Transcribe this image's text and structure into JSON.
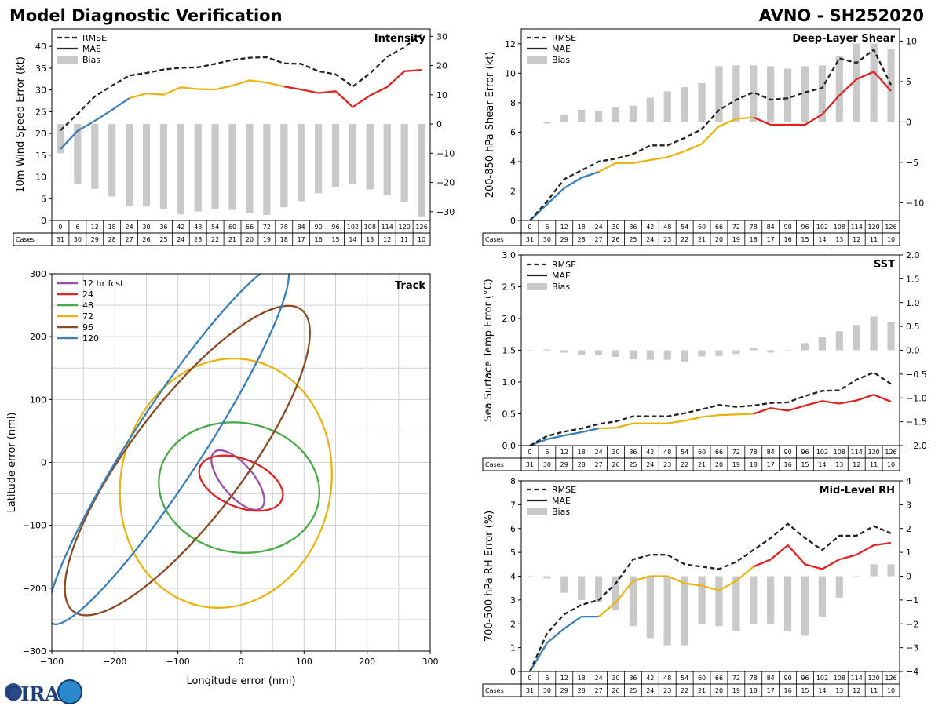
{
  "header": {
    "left_title": "Model Diagnostic Verification",
    "right_title": "AVNO - SH252020"
  },
  "logo": {
    "text": "CIRA"
  },
  "legend_labels": {
    "rmse": "RMSE",
    "mae": "MAE",
    "bias": "Bias"
  },
  "cases_label": "Cases",
  "colors": {
    "early": "#3a7fb8",
    "mid": "#e8b415",
    "late": "#de2423",
    "rmse": "#222222",
    "bias": "#c9c9c9"
  },
  "hours": [
    0,
    6,
    12,
    18,
    24,
    30,
    36,
    42,
    48,
    54,
    60,
    66,
    72,
    78,
    84,
    90,
    96,
    102,
    108,
    114,
    120,
    126
  ],
  "cases": [
    31,
    30,
    29,
    28,
    27,
    26,
    25,
    24,
    23,
    22,
    21,
    20,
    19,
    18,
    17,
    16,
    15,
    14,
    13,
    12,
    11,
    10
  ],
  "chart_data": [
    {
      "id": "intensity",
      "type": "line",
      "title": "Intensity",
      "ylabel": "10m Wind Speed Error (kt)",
      "ylim": [
        0,
        44
      ],
      "yticks": [
        0,
        5,
        10,
        15,
        20,
        25,
        30,
        35,
        40
      ],
      "y2lim": [
        -33,
        32.5
      ],
      "y2ticks": [
        -30,
        -20,
        -10,
        0,
        10,
        20,
        30
      ],
      "rmse": [
        20.7,
        24.5,
        28.5,
        31,
        33.3,
        33.9,
        34.7,
        35.1,
        35.2,
        36,
        36.9,
        37.4,
        37.5,
        36.1,
        36,
        34.3,
        33.6,
        30.8,
        33.8,
        37.6,
        39.8,
        42.8
      ],
      "mae": [
        16.4,
        20.6,
        22.9,
        25.4,
        28.1,
        29.2,
        28.9,
        30.6,
        30.2,
        30.1,
        31,
        32.2,
        31.7,
        30.8,
        30.1,
        29.3,
        29.7,
        26.1,
        28.7,
        30.7,
        34.3,
        34.6
      ],
      "bias": [
        -10,
        -20.5,
        -22.2,
        -24.8,
        -28.1,
        -28.2,
        -29.1,
        -30.9,
        -29.9,
        -29.2,
        -29.4,
        -30.5,
        -31.1,
        -28.5,
        -26.4,
        -23.7,
        -21.6,
        -20.5,
        -22.4,
        -24.4,
        -26.7,
        -31.6
      ]
    },
    {
      "id": "shear",
      "type": "line",
      "title": "Deep-Layer Shear",
      "ylabel": "200-850 hPa Shear Error (kt)",
      "ylim": [
        0,
        13
      ],
      "yticks": [
        0,
        2,
        4,
        6,
        8,
        10,
        12
      ],
      "y2lim": [
        -12.2,
        11.5
      ],
      "y2ticks": [
        -10,
        -5,
        0,
        5,
        10
      ],
      "rmse": [
        0,
        1.3,
        2.8,
        3.4,
        4,
        4.2,
        4.5,
        5.1,
        5.1,
        5.6,
        6.2,
        7.5,
        8.2,
        8.7,
        8.2,
        8.3,
        8.7,
        9,
        11,
        10.7,
        11.6,
        9.2
      ],
      "mae": [
        0,
        1.1,
        2.2,
        2.9,
        3.3,
        3.9,
        3.9,
        4.1,
        4.3,
        4.7,
        5.2,
        6.4,
        6.9,
        7.0,
        6.5,
        6.5,
        6.5,
        7.2,
        8.5,
        9.6,
        10.1,
        8.8
      ],
      "bias": [
        0,
        -0.2,
        0.9,
        1.5,
        1.4,
        1.8,
        2.0,
        3.0,
        3.8,
        4.3,
        4.8,
        6.9,
        7.0,
        7.0,
        6.9,
        6.6,
        6.9,
        7.0,
        8.1,
        9.7,
        9.7,
        9.0
      ]
    },
    {
      "id": "sst",
      "type": "line",
      "title": "SST",
      "ylabel": "Sea Surface Temp Error (°C)",
      "ylim": [
        0,
        3
      ],
      "yticks": [
        0.0,
        0.5,
        1.0,
        1.5,
        2.0,
        2.5,
        3.0
      ],
      "y2lim": [
        -2,
        2
      ],
      "y2ticks": [
        -2.0,
        -1.5,
        -1.0,
        -0.5,
        0.0,
        0.5,
        1.0,
        1.5,
        2.0
      ],
      "rmse": [
        0,
        0.15,
        0.22,
        0.27,
        0.34,
        0.38,
        0.46,
        0.46,
        0.46,
        0.51,
        0.57,
        0.64,
        0.61,
        0.63,
        0.67,
        0.68,
        0.78,
        0.86,
        0.87,
        1.04,
        1.15,
        0.97
      ],
      "mae": [
        0,
        0.1,
        0.16,
        0.21,
        0.27,
        0.28,
        0.35,
        0.35,
        0.35,
        0.39,
        0.45,
        0.48,
        0.49,
        0.5,
        0.59,
        0.55,
        0.63,
        0.7,
        0.66,
        0.71,
        0.8,
        0.69
      ],
      "bias": [
        0,
        0.02,
        -0.05,
        -0.1,
        -0.1,
        -0.14,
        -0.19,
        -0.2,
        -0.2,
        -0.24,
        -0.13,
        -0.12,
        -0.08,
        0.05,
        -0.05,
        0,
        0.15,
        0.28,
        0.4,
        0.53,
        0.71,
        0.6
      ]
    },
    {
      "id": "rh",
      "type": "line",
      "title": "Mid-Level RH",
      "ylabel": "700-500 hPa RH Error (%)",
      "ylim": [
        0,
        8
      ],
      "yticks": [
        0,
        1,
        2,
        3,
        4,
        5,
        6,
        7,
        8
      ],
      "y2lim": [
        -4,
        4
      ],
      "y2ticks": [
        -4,
        -3,
        -2,
        -1,
        0,
        1,
        2,
        3,
        4
      ],
      "rmse": [
        0,
        1.6,
        2.4,
        2.8,
        3,
        3.7,
        4.7,
        4.9,
        4.9,
        4.5,
        4.4,
        4.3,
        4.6,
        5.1,
        5.6,
        6.2,
        5.6,
        5.1,
        5.7,
        5.7,
        6.1,
        5.8
      ],
      "mae": [
        0,
        1.2,
        1.8,
        2.3,
        2.3,
        2.9,
        3.8,
        4,
        4,
        3.7,
        3.6,
        3.4,
        3.8,
        4.4,
        4.7,
        5.3,
        4.5,
        4.3,
        4.7,
        4.9,
        5.3,
        5.4
      ],
      "bias": [
        0,
        -0.1,
        -0.7,
        -1,
        -1.1,
        -1.4,
        -2.1,
        -2.6,
        -2.9,
        -2.9,
        -2,
        -2.1,
        -2.3,
        -2,
        -2,
        -2.3,
        -2.5,
        -1.7,
        -0.9,
        0,
        0.5,
        0.5
      ]
    },
    {
      "id": "track",
      "type": "scatter",
      "title": "Track",
      "xlabel": "Longitude error (nmi)",
      "ylabel": "Latitude error (nmi)",
      "xlim": [
        -300,
        300
      ],
      "ylim": [
        -300,
        300
      ],
      "ticks": [
        -300,
        -200,
        -100,
        0,
        100,
        200,
        300
      ],
      "ellipses": [
        {
          "label": "12 hr fcst",
          "color": "#9a4fa6",
          "cx": -5,
          "cy": -28,
          "rx": 25,
          "ry": 58,
          "rot": -40
        },
        {
          "label": "24",
          "color": "#de2423",
          "cx": 0,
          "cy": -33,
          "rx": 70,
          "ry": 38,
          "rot": 22
        },
        {
          "label": "48",
          "color": "#4aaa4a",
          "cx": -3,
          "cy": -40,
          "rx": 128,
          "ry": 103,
          "rot": 10
        },
        {
          "label": "72",
          "color": "#e8b415",
          "cx": -24,
          "cy": -33,
          "rx": 199,
          "ry": 167,
          "rot": -78
        },
        {
          "label": "96",
          "color": "#8b4a25",
          "cx": -85,
          "cy": 3,
          "rx": 300,
          "ry": 90,
          "rot": -53
        },
        {
          "label": "120",
          "color": "#3a7fb8",
          "cx": -115,
          "cy": 30,
          "rx": 340,
          "ry": 56,
          "rot": -57
        }
      ]
    }
  ]
}
